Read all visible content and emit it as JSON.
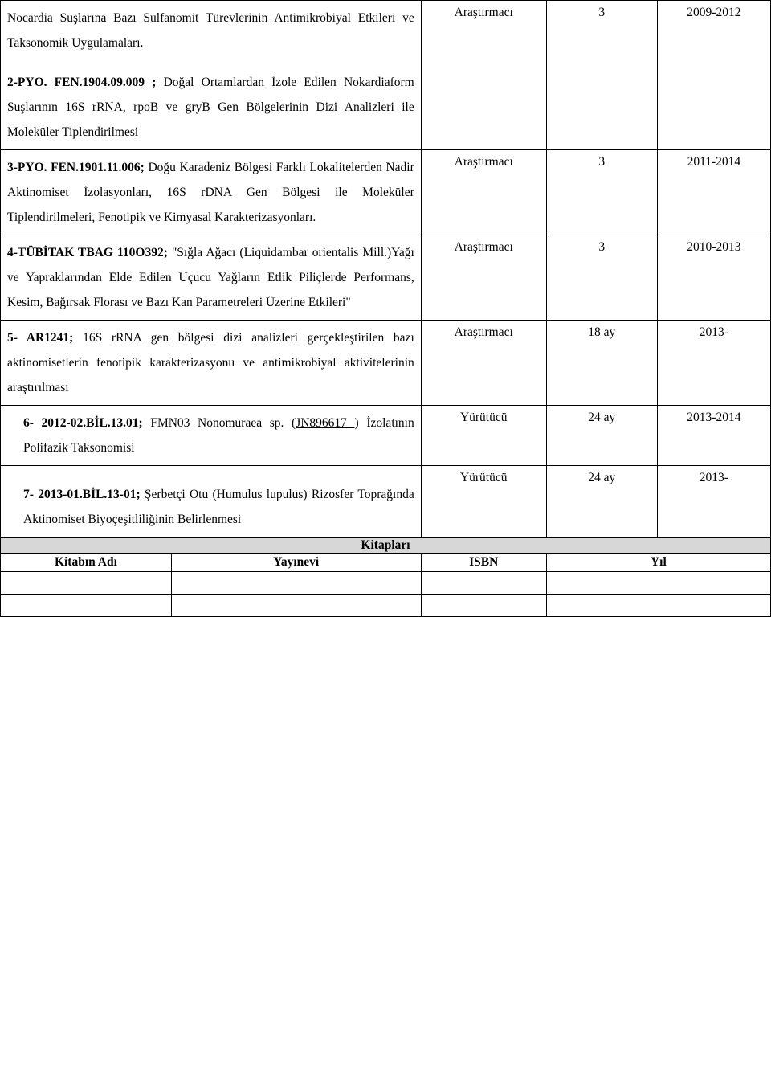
{
  "projects": [
    {
      "desc_html": "Nocardia Suşlarına Bazı Sulfanomit Türevlerinin Antimikrobiyal Etkileri ve Taksonomik Uygulamaları.",
      "role": "",
      "dur": "",
      "year": "",
      "para2_prefix": "2-PYO. FEN.1904.09.009 ;",
      "para2_rest": " Doğal Ortamlardan İzole Edilen Nokardiaform Suşlarının 16S rRNA, rpoB ve gryB Gen Bölgelerinin Dizi Analizleri ile Moleküler Tiplendirilmesi"
    },
    {
      "role": "Araştırmacı",
      "dur": "3",
      "year": "2009-2012"
    },
    {
      "prefix": "3-PYO. FEN.1901.11.006;",
      "rest": " Doğu Karadeniz Bölgesi Farklı Lokalitelerden Nadir Aktinomiset İzolasyonları, 16S rDNA Gen Bölgesi ile Moleküler Tiplendirilmeleri, Fenotipik ve Kimyasal Karakterizasyonları.",
      "role": "Araştırmacı",
      "dur": "3",
      "year": "2011-2014"
    },
    {
      "prefix": "4-TÜBİTAK TBAG 110O392;",
      "rest": " \"Sığla Ağacı (Liquidambar orientalis Mill.)Yağı ve Yapraklarından Elde Edilen Uçucu Yağların Etlik Piliçlerde Performans, Kesim, Bağırsak Florası ve Bazı Kan Parametreleri Üzerine Etkileri\"",
      "role": "Araştırmacı",
      "dur": "3",
      "year": "2010-2013"
    },
    {
      "prefix": "5- AR1241;",
      "rest": " 16S rRNA gen bölgesi dizi analizleri gerçekleştirilen bazı aktinomisetlerin fenotipik karakterizasyonu ve antimikrobiyal aktivitelerinin araştırılması",
      "role": "Araştırmacı",
      "dur": "18 ay",
      "year": "2013-"
    },
    {
      "prefix": "6- 2012-02.BİL.13.01;",
      "rest_a": " FMN03 Nonomuraea sp. (",
      "link": "JN896617 ",
      "rest_b": ")   İzolatının Polifazik Taksonomisi",
      "role": "Yürütücü",
      "dur": "24 ay",
      "year": "2013-2014",
      "indent": true
    },
    {
      "prefix": "7- 2013-01.BİL.13-01;",
      "rest": " Şerbetçi Otu (Humulus lupulus) Rizosfer Toprağında Aktinomiset Biyoçeşitliliğinin Belirlenmesi",
      "role": "Yürütücü",
      "dur": "24 ay",
      "year": "2013-",
      "indent": true
    }
  ],
  "books_section": {
    "title": "Kitapları",
    "cols": [
      "Kitabın Adı",
      "Yayınevi",
      "ISBN",
      "Yıl"
    ]
  },
  "colwidths": {
    "desc": 497,
    "role": 148,
    "dur": 131,
    "year": 134
  },
  "bookcolwidths": {
    "a": 202,
    "b": 295,
    "c": 148,
    "d": 265
  }
}
